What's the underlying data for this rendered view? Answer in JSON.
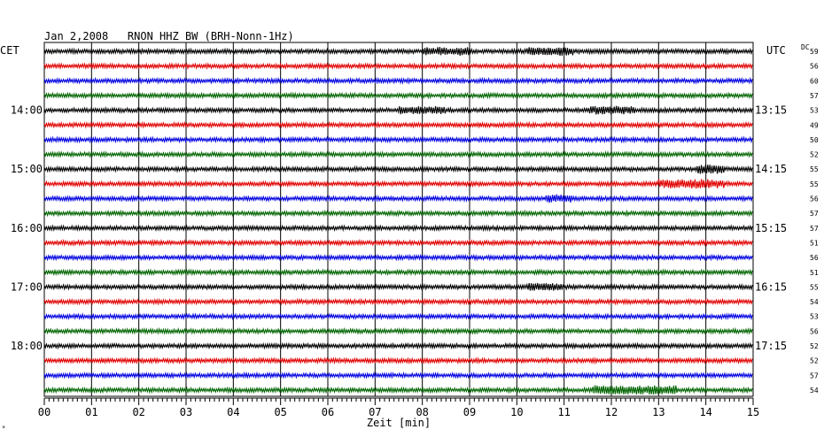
{
  "chart_data": {
    "type": "line",
    "title": "Jan 2,2008   RNON HHZ BW (BRH-Nonn-1Hz)",
    "xlabel": "Zeit [min]",
    "xlim": [
      0,
      15
    ],
    "x_ticks": [
      "00",
      "01",
      "02",
      "03",
      "04",
      "05",
      "06",
      "07",
      "08",
      "09",
      "10",
      "11",
      "12",
      "13",
      "14",
      "15"
    ],
    "left_axis_label": "CET",
    "right_axis_label": "UTC",
    "dc_label": "DC",
    "trace_colors": [
      "#000000",
      "#e00000",
      "#0000e0",
      "#006400"
    ],
    "cet_hour_labels": [
      "14:00",
      "15:00",
      "16:00",
      "17:00",
      "18:00"
    ],
    "utc_hour_labels": [
      "13:15",
      "14:15",
      "15:15",
      "16:15",
      "17:15"
    ],
    "hour_label_trace_index": [
      4,
      8,
      12,
      16,
      20
    ],
    "dc_offsets": [
      59,
      56,
      60,
      57,
      53,
      49,
      50,
      52,
      55,
      55,
      56,
      57,
      57,
      51,
      56,
      51,
      55,
      54,
      53,
      56,
      52,
      52,
      57,
      54
    ],
    "trace_count": 24,
    "grid": true,
    "bursts": [
      {
        "trace": 0,
        "from_min": 8.0,
        "to_min": 9.0,
        "amp": 1.8
      },
      {
        "trace": 0,
        "from_min": 10.2,
        "to_min": 11.2,
        "amp": 1.8
      },
      {
        "trace": 4,
        "from_min": 7.5,
        "to_min": 8.5,
        "amp": 1.6
      },
      {
        "trace": 4,
        "from_min": 11.5,
        "to_min": 12.5,
        "amp": 1.9
      },
      {
        "trace": 8,
        "from_min": 13.8,
        "to_min": 14.4,
        "amp": 2.2
      },
      {
        "trace": 9,
        "from_min": 13.0,
        "to_min": 14.4,
        "amp": 2.0
      },
      {
        "trace": 10,
        "from_min": 10.6,
        "to_min": 11.2,
        "amp": 1.6
      },
      {
        "trace": 16,
        "from_min": 10.2,
        "to_min": 11.0,
        "amp": 1.6
      },
      {
        "trace": 23,
        "from_min": 11.6,
        "to_min": 13.4,
        "amp": 2.0
      }
    ]
  }
}
